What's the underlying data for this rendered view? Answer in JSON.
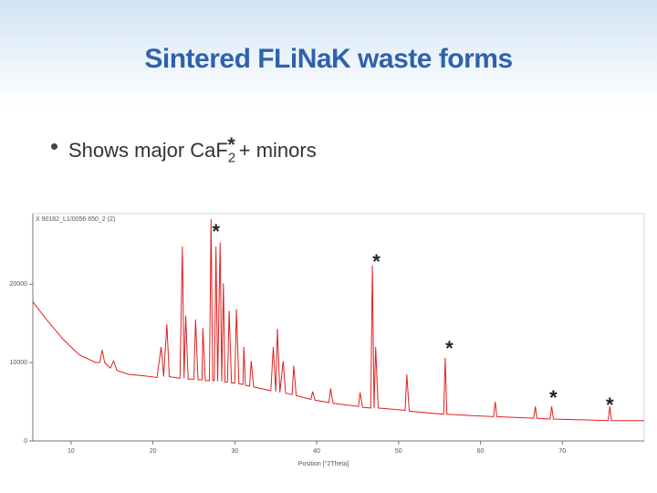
{
  "slide": {
    "title": "Sintered FLiNaK waste forms",
    "bullet": {
      "text": "Shows major CaF",
      "sub": "2",
      "sup": "*",
      "rest": "+ minors"
    }
  },
  "chart_data": {
    "type": "line",
    "x_label": "Position [°2Theta]",
    "x": [
      5.3,
      7,
      9,
      11,
      13,
      13.5,
      13.8,
      14.1,
      14.8,
      15.2,
      15.6,
      17,
      19,
      20.5,
      21,
      21.3,
      21.7,
      22,
      23.3,
      23.6,
      23.8,
      24,
      24.3,
      25,
      25.2,
      25.5,
      26,
      26.1,
      26.4,
      26.9,
      27.1,
      27.3,
      27.5,
      27.7,
      27.9,
      28.2,
      28.4,
      28.6,
      28.8,
      29.1,
      29.3,
      29.6,
      30,
      30.2,
      30.5,
      31,
      31.1,
      31.3,
      31.8,
      32,
      32.3,
      34.4,
      34.7,
      35,
      35.2,
      35.5,
      35.9,
      36.2,
      37,
      37.2,
      37.5,
      39.3,
      39.5,
      39.8,
      41.5,
      41.7,
      42,
      45.1,
      45.3,
      45.6,
      46.6,
      46.8,
      47,
      47.2,
      47.5,
      50.8,
      51,
      51.3,
      55.5,
      55.7,
      55.9,
      61.6,
      61.8,
      62,
      66.5,
      66.7,
      66.9,
      68.5,
      68.7,
      68.9,
      75.6,
      75.8,
      76,
      80
    ],
    "series": [
      {
        "name": "X 90182_L1/0056 650_2 (2)",
        "color": "#e02020",
        "values": [
          17800,
          15500,
          13000,
          11000,
          10000,
          10000,
          11600,
          10000,
          9300,
          10200,
          9000,
          8500,
          8300,
          8100,
          12000,
          8200,
          14900,
          8200,
          8000,
          24800,
          8000,
          16000,
          7900,
          7900,
          15500,
          7800,
          7800,
          14400,
          7700,
          7700,
          28300,
          7700,
          7700,
          24800,
          7600,
          25300,
          7600,
          20100,
          7500,
          7500,
          16600,
          7400,
          7400,
          16800,
          7300,
          7200,
          12000,
          7100,
          7000,
          10200,
          6900,
          6400,
          12000,
          6300,
          14300,
          6200,
          10200,
          6100,
          5900,
          9600,
          5800,
          5300,
          6300,
          5200,
          4900,
          6700,
          4800,
          4400,
          6200,
          4300,
          4200,
          22400,
          4200,
          12000,
          4200,
          3900,
          8500,
          3800,
          3400,
          10600,
          3400,
          3100,
          5000,
          3100,
          2900,
          4400,
          2900,
          2800,
          4400,
          2800,
          2600,
          4400,
          2600,
          2600
        ]
      }
    ],
    "xlim": [
      5,
      80
    ],
    "xticks": [
      10,
      20,
      30,
      40,
      50,
      60,
      70
    ],
    "ylim": [
      0,
      29000
    ],
    "yticks": [
      0,
      10000,
      20000
    ],
    "annotations": [
      {
        "text": "*",
        "x": 27.7,
        "y": 27100
      },
      {
        "text": "*",
        "x": 47.3,
        "y": 23300
      },
      {
        "text": "*",
        "x": 56.2,
        "y": 12200
      },
      {
        "text": "*",
        "x": 68.9,
        "y": 5900
      },
      {
        "text": "*",
        "x": 75.8,
        "y": 5000
      }
    ]
  }
}
